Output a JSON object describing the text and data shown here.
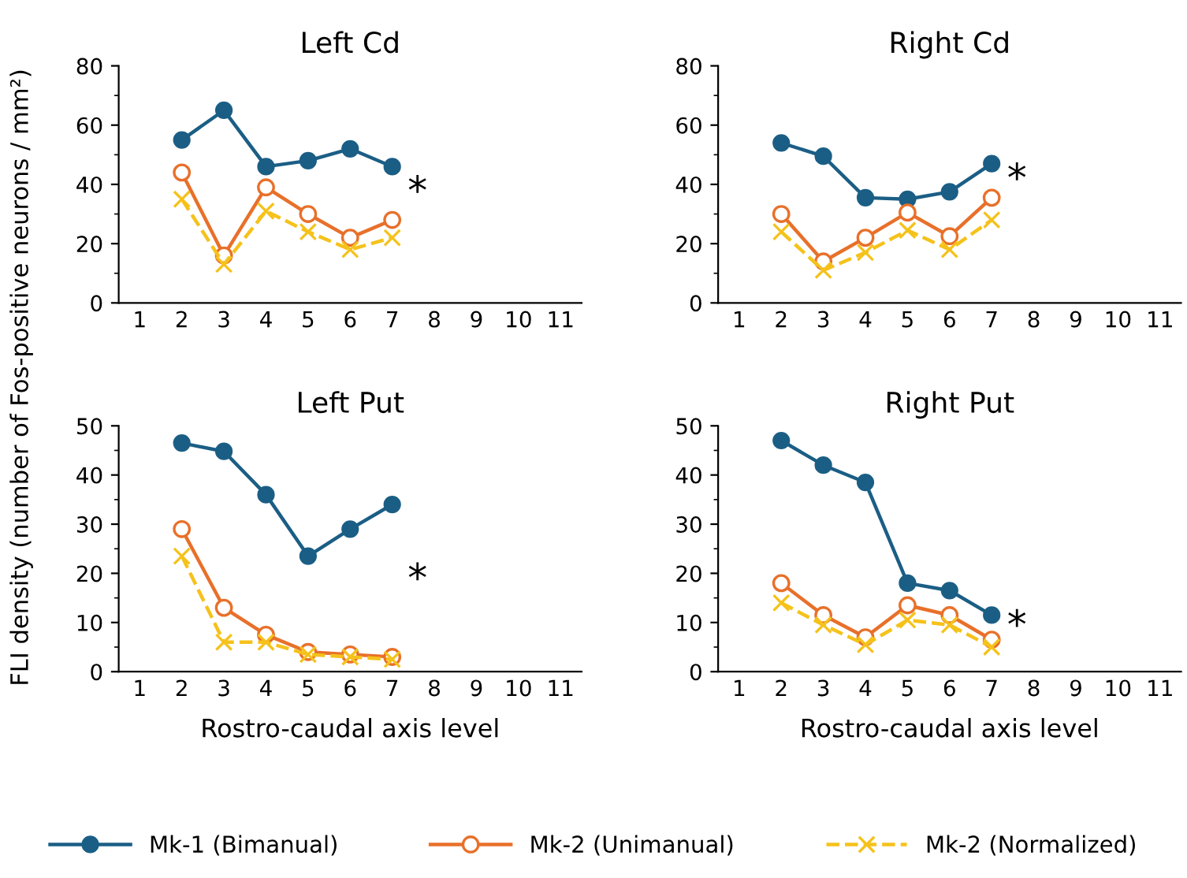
{
  "chart_data": [
    {
      "type": "line",
      "title": "Left Cd",
      "ylabel": "FLI density (number of Fos-positive neurons / mm²)",
      "categories": [
        "1",
        "2",
        "3",
        "4",
        "5",
        "6",
        "7",
        "8",
        "9",
        "10",
        "11"
      ],
      "ylim": [
        0,
        80
      ],
      "yticks": [
        0,
        20,
        40,
        60,
        80
      ],
      "legend": "bottom",
      "grid": false,
      "annotations": [
        "*"
      ],
      "series": [
        {
          "name": "Mk-1 (Bimanual)",
          "color": "#1b5e85",
          "marker": "circle",
          "line_style": "solid",
          "values": [
            null,
            55,
            65,
            46,
            48,
            52,
            46,
            null,
            null,
            null,
            null
          ]
        },
        {
          "name": "Mk-2 (Unimanual)",
          "color": "#e8702a",
          "marker": "circle",
          "line_style": "solid",
          "values": [
            null,
            44,
            16,
            39,
            30,
            22,
            28,
            null,
            null,
            null,
            null
          ]
        },
        {
          "name": "Mk-2 (Normalized)",
          "color": "#f5c21b",
          "marker": "cross",
          "line_style": "dashed",
          "values": [
            null,
            35,
            13,
            31,
            24,
            18,
            22,
            null,
            null,
            null,
            null
          ]
        }
      ]
    },
    {
      "type": "line",
      "title": "Right Cd",
      "categories": [
        "1",
        "2",
        "3",
        "4",
        "5",
        "6",
        "7",
        "8",
        "9",
        "10",
        "11"
      ],
      "ylim": [
        0,
        80
      ],
      "yticks": [
        0,
        20,
        40,
        60,
        80
      ],
      "grid": false,
      "annotations": [
        "*"
      ],
      "series": [
        {
          "color": "#1b5e85",
          "marker": "circle",
          "line_style": "solid",
          "values": [
            null,
            54,
            49.5,
            35.5,
            35,
            37.5,
            47,
            null,
            null,
            null,
            null
          ]
        },
        {
          "color": "#e8702a",
          "marker": "circle",
          "line_style": "solid",
          "values": [
            null,
            30,
            14,
            22,
            30.5,
            22.5,
            35.5,
            null,
            null,
            null,
            null
          ]
        },
        {
          "color": "#f5c21b",
          "marker": "cross",
          "line_style": "dashed",
          "values": [
            null,
            24,
            11,
            17,
            24.5,
            18,
            28,
            null,
            null,
            null,
            null
          ]
        }
      ]
    },
    {
      "type": "line",
      "title": "Left Put",
      "xlabel": "Rostro-caudal axis level",
      "categories": [
        "1",
        "2",
        "3",
        "4",
        "5",
        "6",
        "7",
        "8",
        "9",
        "10",
        "11"
      ],
      "ylim": [
        0,
        50
      ],
      "yticks": [
        0,
        10,
        20,
        30,
        40,
        50
      ],
      "grid": false,
      "annotations": [
        "*"
      ],
      "series": [
        {
          "color": "#1b5e85",
          "marker": "circle",
          "line_style": "solid",
          "values": [
            null,
            46.5,
            44.8,
            36,
            23.5,
            29,
            34,
            null,
            null,
            null,
            null
          ]
        },
        {
          "color": "#e8702a",
          "marker": "circle",
          "line_style": "solid",
          "values": [
            null,
            29,
            13,
            7.5,
            4,
            3.5,
            3,
            null,
            null,
            null,
            null
          ]
        },
        {
          "color": "#f5c21b",
          "marker": "cross",
          "line_style": "dashed",
          "values": [
            null,
            23.5,
            6,
            6,
            3.5,
            3,
            2.5,
            null,
            null,
            null,
            null
          ]
        }
      ]
    },
    {
      "type": "line",
      "title": "Right Put",
      "xlabel": "Rostro-caudal axis level",
      "categories": [
        "1",
        "2",
        "3",
        "4",
        "5",
        "6",
        "7",
        "8",
        "9",
        "10",
        "11"
      ],
      "ylim": [
        0,
        50
      ],
      "yticks": [
        0,
        10,
        20,
        30,
        40,
        50
      ],
      "grid": false,
      "annotations": [
        "*"
      ],
      "series": [
        {
          "color": "#1b5e85",
          "marker": "circle",
          "line_style": "solid",
          "values": [
            null,
            47,
            42,
            38.5,
            18,
            16.5,
            11.5,
            null,
            null,
            null,
            null
          ]
        },
        {
          "color": "#e8702a",
          "marker": "circle",
          "line_style": "solid",
          "values": [
            null,
            18,
            11.5,
            7,
            13.5,
            11.5,
            6.5,
            null,
            null,
            null,
            null
          ]
        },
        {
          "color": "#f5c21b",
          "marker": "cross",
          "line_style": "dashed",
          "values": [
            null,
            14,
            9.5,
            5.5,
            10.5,
            9.5,
            5,
            null,
            null,
            null,
            null
          ]
        }
      ]
    }
  ]
}
